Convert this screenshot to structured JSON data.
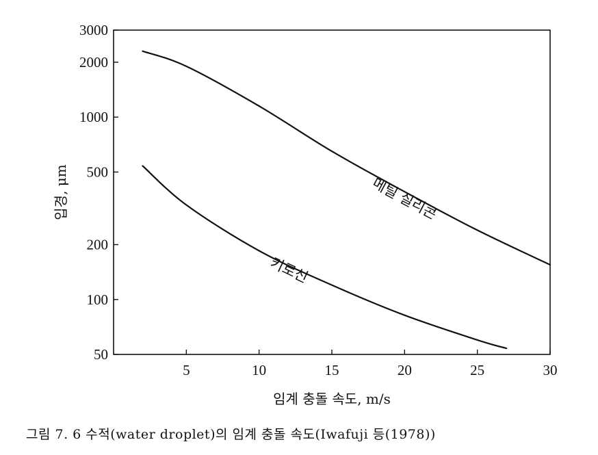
{
  "caption": "그림 7. 6  수적(water droplet)의 임계 충돌 속도(Iwafuji 등(1978))",
  "chart_data": {
    "type": "line",
    "title": "",
    "xlabel": "임계 충돌 속도, m/s",
    "ylabel": "입경, μm",
    "xlim": [
      0,
      30
    ],
    "ylim": [
      50,
      3000
    ],
    "y_scale": "log",
    "grid": false,
    "x_ticks": [
      5,
      10,
      15,
      20,
      25,
      30
    ],
    "x_tick_labels": [
      "5",
      "10",
      "15",
      "20",
      "25",
      "30"
    ],
    "y_ticks": [
      50,
      100,
      200,
      500,
      1000,
      2000,
      3000
    ],
    "y_tick_labels": [
      "50",
      "100",
      "200",
      "500",
      "1000",
      "2000",
      "3000"
    ],
    "series": [
      {
        "name": "메틸 실리콘",
        "x": [
          2,
          5,
          10,
          15,
          20,
          25,
          30
        ],
        "y": [
          2300,
          1900,
          1150,
          650,
          390,
          240,
          155
        ]
      },
      {
        "name": "키로신",
        "x": [
          2,
          5,
          10,
          15,
          20,
          25,
          27
        ],
        "y": [
          540,
          330,
          185,
          120,
          82,
          60,
          54
        ]
      }
    ]
  }
}
